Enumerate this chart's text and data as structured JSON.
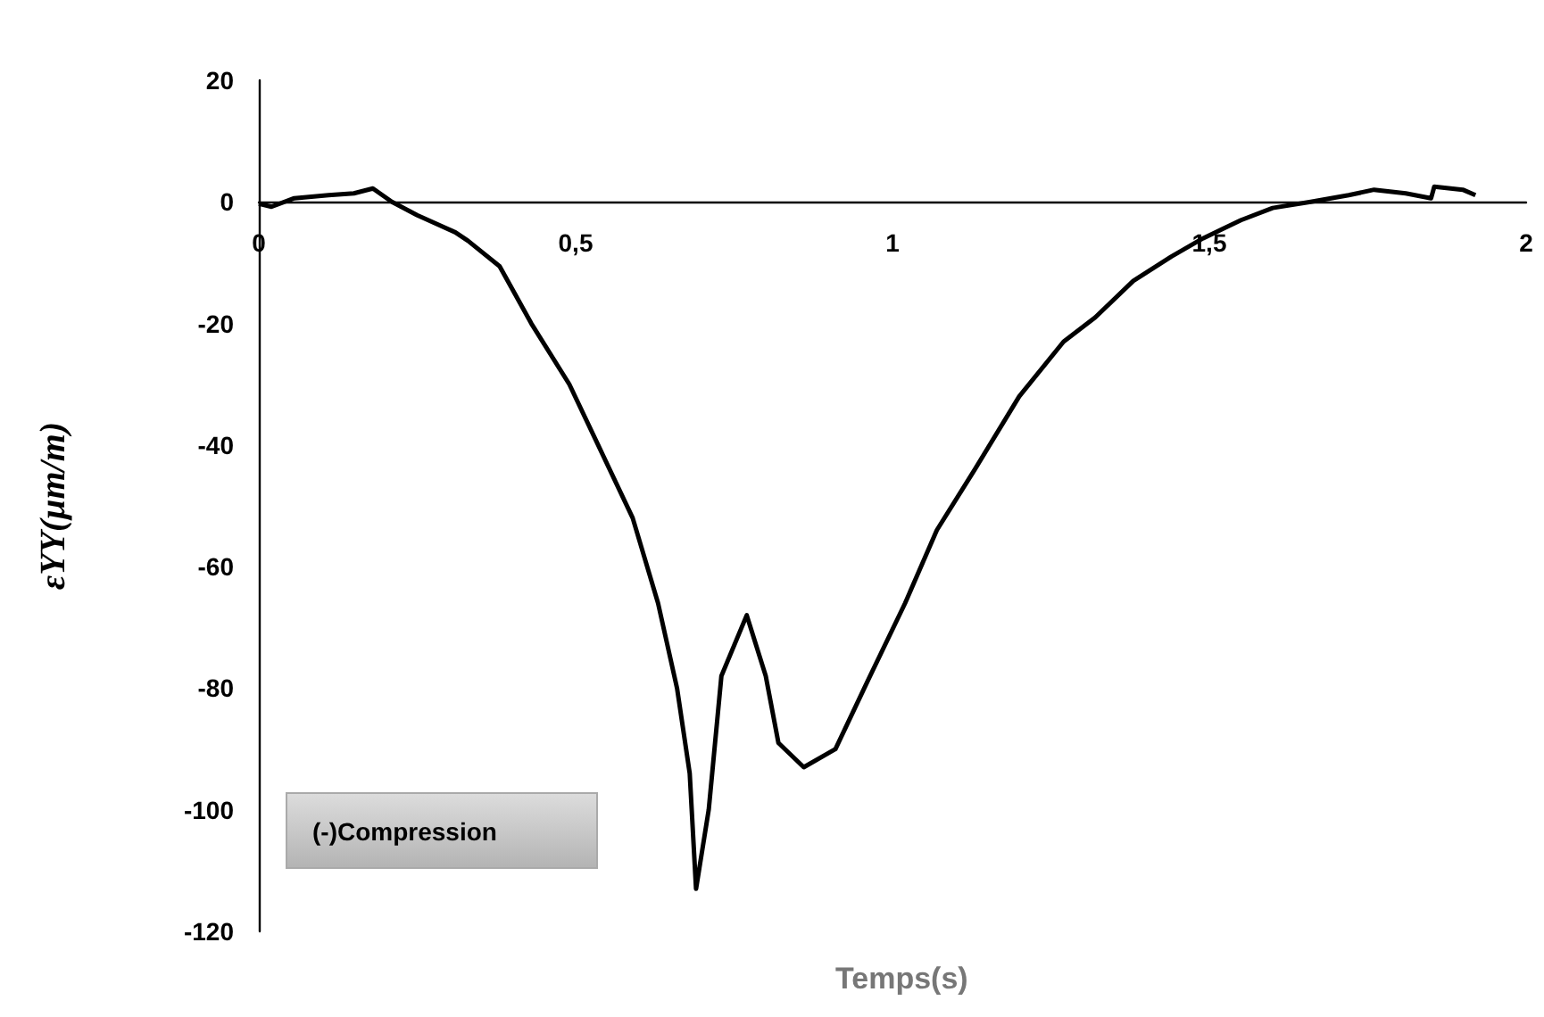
{
  "chart_data": {
    "type": "line",
    "xlabel": "Temps(s)",
    "ylabel": "εYY(µm/m)",
    "annotations": [
      "(-)Compression"
    ],
    "series": [
      {
        "color": "#000000",
        "x": [
          0,
          0.02,
          0.056,
          0.11,
          0.15,
          0.18,
          0.21,
          0.25,
          0.31,
          0.33,
          0.38,
          0.43,
          0.49,
          0.54,
          0.59,
          0.63,
          0.66,
          0.68,
          0.69,
          0.71,
          0.73,
          0.77,
          0.8,
          0.82,
          0.86,
          0.91,
          0.96,
          1.02,
          1.07,
          1.13,
          1.2,
          1.27,
          1.32,
          1.38,
          1.44,
          1.49,
          1.55,
          1.6,
          1.66,
          1.72,
          1.76,
          1.81,
          1.85,
          1.855,
          1.9,
          1.92
        ],
        "values": [
          -0.3,
          -0.8,
          0.6,
          1.1,
          1.4,
          2.2,
          0,
          -2.2,
          -5,
          -6.4,
          -10.6,
          -20,
          -30,
          -41,
          -52,
          -66,
          -80,
          -94,
          -113,
          -100,
          -78,
          -68,
          -78,
          -89,
          -93,
          -90,
          -79,
          -66,
          -54,
          -44,
          -32,
          -23,
          -19,
          -13,
          -9,
          -6,
          -3,
          -1,
          0,
          1.1,
          2,
          1.4,
          0.6,
          2.5,
          2,
          1.1
        ]
      }
    ],
    "xlim": [
      0,
      2
    ],
    "xticks": [
      0,
      {
        "value": 0.5,
        "label": "0,5"
      },
      1,
      {
        "value": 1.5,
        "label": "1,5"
      },
      2
    ],
    "ylim": [
      -120,
      20
    ],
    "yticks": [
      -120,
      -100,
      -80,
      -60,
      -40,
      -20,
      0,
      20
    ],
    "grid": false,
    "marker": "none",
    "line_style": "solid"
  }
}
